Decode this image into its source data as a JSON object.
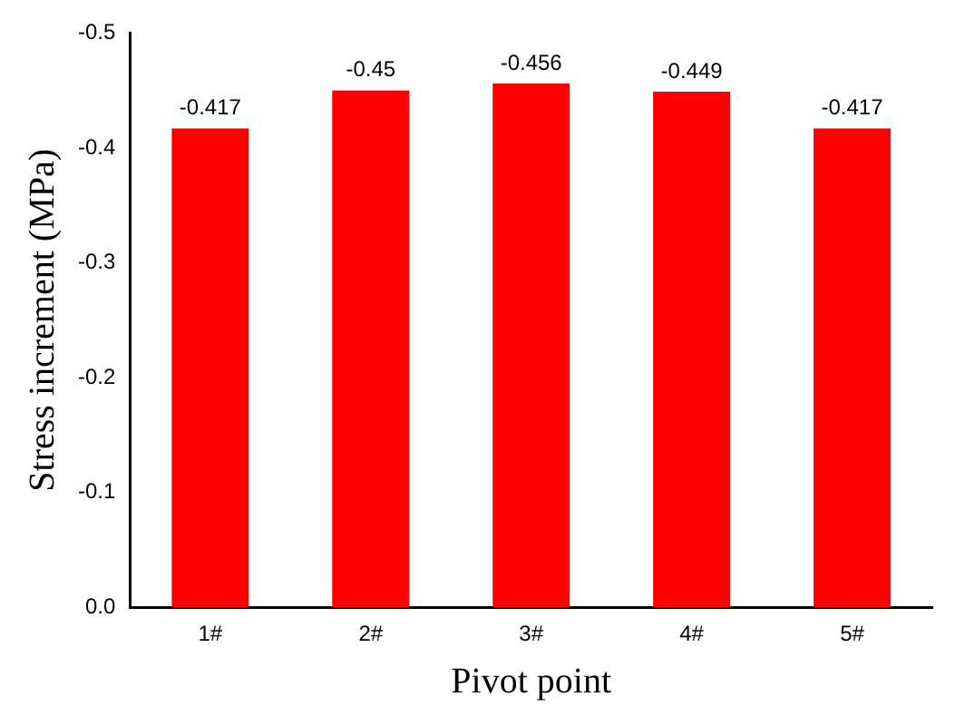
{
  "chart_data": {
    "type": "bar",
    "xlabel": "Pivot point",
    "ylabel": "Stress increment (MPa)",
    "categories": [
      "1#",
      "2#",
      "3#",
      "4#",
      "5#"
    ],
    "series": [
      {
        "color": "#ff0000",
        "values": [
          -0.417,
          -0.45,
          -0.456,
          -0.449,
          -0.417
        ]
      }
    ],
    "ylim": [
      0,
      -0.5
    ],
    "yticks": [
      {
        "value": 0,
        "label": "0.0"
      },
      -0.1,
      -0.2,
      -0.3,
      -0.4,
      -0.5
    ],
    "data_labels": true,
    "grid": false,
    "legend": false
  }
}
